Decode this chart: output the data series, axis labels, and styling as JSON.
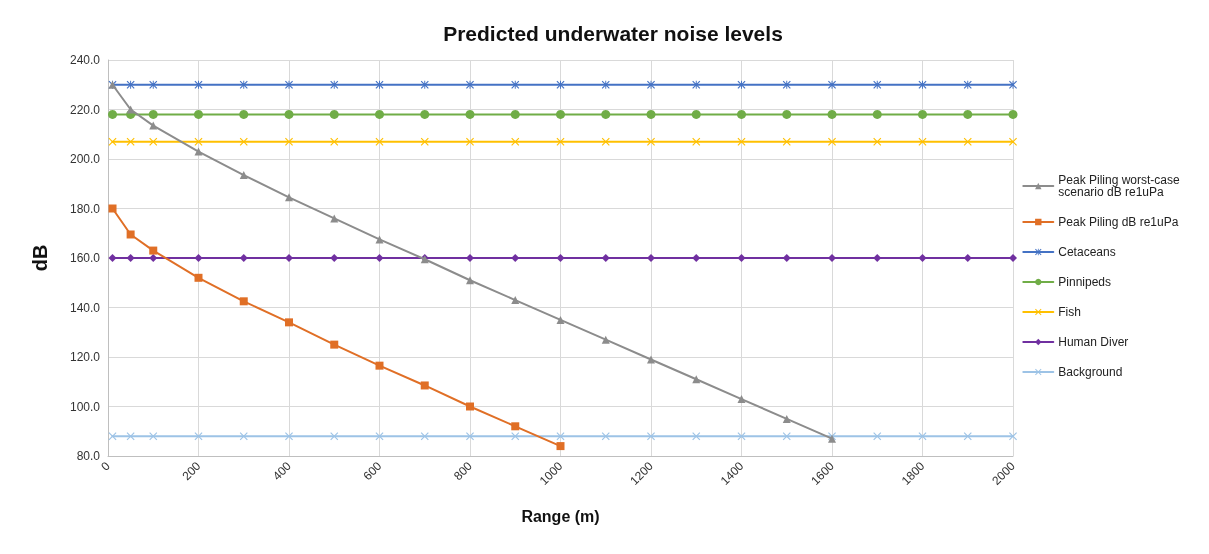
{
  "chart_data": {
    "type": "line",
    "title": "Predicted underwater noise levels",
    "xlabel": "Range (m)",
    "ylabel": "dB",
    "x": [
      10,
      50,
      100,
      200,
      300,
      400,
      500,
      600,
      700,
      800,
      900,
      1000,
      1100,
      1200,
      1300,
      1400,
      1500,
      1600,
      1700,
      1800,
      1900,
      2000
    ],
    "series": [
      {
        "name": "Peak Piling worst-case scenario dB re1uPa",
        "color": "#8c8c8c",
        "marker": "triangle",
        "values": [
          230,
          220,
          213.5,
          203,
          193.5,
          184.5,
          176,
          167.5,
          159.5,
          151,
          143,
          135,
          127,
          119,
          111,
          103,
          95,
          87,
          null,
          null,
          null,
          null
        ]
      },
      {
        "name": "Peak Piling dB re1uPa",
        "color": "#e06f26",
        "marker": "square",
        "values": [
          180,
          169.5,
          163,
          152,
          142.5,
          134,
          125,
          116.5,
          108.5,
          100,
          92,
          84,
          null,
          null,
          null,
          null,
          null,
          null,
          null,
          null,
          null,
          null
        ]
      },
      {
        "name": "Cetaceans",
        "color": "#4472c4",
        "marker": "star",
        "values": [
          230,
          230,
          230,
          230,
          230,
          230,
          230,
          230,
          230,
          230,
          230,
          230,
          230,
          230,
          230,
          230,
          230,
          230,
          230,
          230,
          230,
          230
        ]
      },
      {
        "name": "Pinnipeds",
        "color": "#70ad47",
        "marker": "circle",
        "values": [
          218,
          218,
          218,
          218,
          218,
          218,
          218,
          218,
          218,
          218,
          218,
          218,
          218,
          218,
          218,
          218,
          218,
          218,
          218,
          218,
          218,
          218
        ]
      },
      {
        "name": "Fish",
        "color": "#ffc000",
        "marker": "cross",
        "values": [
          207,
          207,
          207,
          207,
          207,
          207,
          207,
          207,
          207,
          207,
          207,
          207,
          207,
          207,
          207,
          207,
          207,
          207,
          207,
          207,
          207,
          207
        ]
      },
      {
        "name": "Human Diver",
        "color": "#7030a0",
        "marker": "diamond",
        "values": [
          160,
          160,
          160,
          160,
          160,
          160,
          160,
          160,
          160,
          160,
          160,
          160,
          160,
          160,
          160,
          160,
          160,
          160,
          160,
          160,
          160,
          160
        ]
      },
      {
        "name": "Background",
        "color": "#9dc3e6",
        "marker": "cross",
        "values": [
          88,
          88,
          88,
          88,
          88,
          88,
          88,
          88,
          88,
          88,
          88,
          88,
          88,
          88,
          88,
          88,
          88,
          88,
          88,
          88,
          88,
          88
        ]
      }
    ],
    "xlim": [
      0,
      2000
    ],
    "xticks": [
      0,
      200,
      400,
      600,
      800,
      1000,
      1200,
      1400,
      1600,
      1800,
      2000
    ],
    "ylim": [
      80,
      240
    ],
    "yticks": [
      {
        "value": 80,
        "label": "80.0"
      },
      {
        "value": 100,
        "label": "100.0"
      },
      {
        "value": 120,
        "label": "120.0"
      },
      {
        "value": 140,
        "label": "140.0"
      },
      {
        "value": 160,
        "label": "160.0"
      },
      {
        "value": 180,
        "label": "180.0"
      },
      {
        "value": 200,
        "label": "200.0"
      },
      {
        "value": 220,
        "label": "220.0"
      },
      {
        "value": 240,
        "label": "240.0"
      }
    ],
    "grid": true,
    "legend": "right"
  }
}
